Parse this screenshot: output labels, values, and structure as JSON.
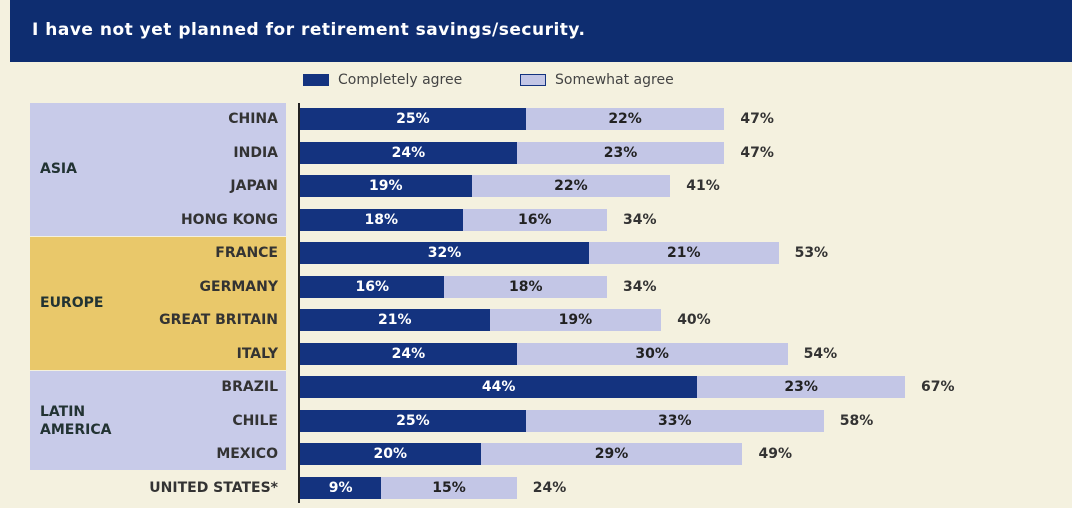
{
  "chart_data": {
    "type": "stacked-bar",
    "orientation": "horizontal",
    "title": "I have not yet planned for retirement savings/security.",
    "categories": [
      "CHINA",
      "INDIA",
      "JAPAN",
      "HONG KONG",
      "FRANCE",
      "GERMANY",
      "GREAT BRITAIN",
      "ITALY",
      "BRAZIL",
      "CHILE",
      "MEXICO",
      "UNITED STATES*"
    ],
    "groups": [
      {
        "label": "ASIA",
        "color": "#c8cbe9",
        "categories": [
          "CHINA",
          "INDIA",
          "JAPAN",
          "HONG KONG"
        ]
      },
      {
        "label": "EUROPE",
        "color": "#e9c86a",
        "categories": [
          "FRANCE",
          "GERMANY",
          "GREAT BRITAIN",
          "ITALY"
        ]
      },
      {
        "label": "LATIN AMERICA",
        "color": "#c8cbe9",
        "categories": [
          "BRAZIL",
          "CHILE",
          "MEXICO"
        ]
      }
    ],
    "series": [
      {
        "name": "Completely agree",
        "color": "#14337f",
        "values": [
          25,
          24,
          19,
          18,
          32,
          16,
          21,
          24,
          44,
          25,
          20,
          9
        ],
        "value_labels": [
          "25%",
          "24%",
          "19%",
          "18%",
          "32%",
          "16%",
          "21%",
          "24%",
          "44%",
          "25%",
          "20%",
          "9%"
        ]
      },
      {
        "name": "Somewhat agree",
        "color": "#c3c6e6",
        "values": [
          22,
          23,
          22,
          16,
          21,
          18,
          19,
          30,
          23,
          33,
          29,
          15
        ],
        "value_labels": [
          "22%",
          "23%",
          "22%",
          "16%",
          "21%",
          "18%",
          "19%",
          "30%",
          "23%",
          "33%",
          "29%",
          "15%"
        ]
      }
    ],
    "totals": [
      47,
      47,
      41,
      34,
      53,
      34,
      40,
      54,
      67,
      58,
      49,
      24
    ],
    "total_labels": [
      "47%",
      "47%",
      "41%",
      "34%",
      "53%",
      "34%",
      "40%",
      "54%",
      "67%",
      "58%",
      "49%",
      "24%"
    ]
  }
}
